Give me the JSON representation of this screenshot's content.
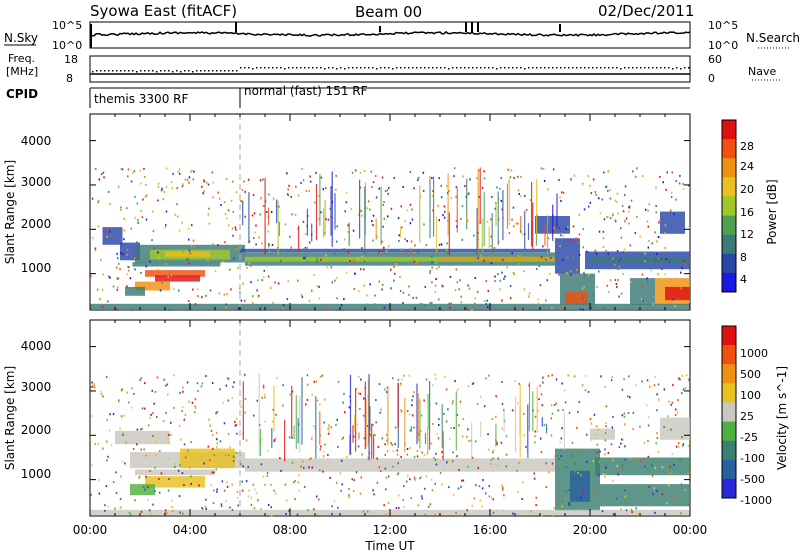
{
  "header": {
    "title": "Syowa East (fitACF)",
    "beam": "Beam 00",
    "date": "02/Dec/2011"
  },
  "top_panels": {
    "nsky_label": "N.Sky",
    "nsearch_label": "N.Search",
    "nsky_ticks": [
      "10^5",
      "10^0"
    ],
    "nsky_right_ticks": [
      "10^5",
      "10^0"
    ],
    "freq_label_1": "Freq.",
    "freq_label_2": "[MHz]",
    "freq_ticks": [
      "18",
      "8"
    ],
    "nave_label": "Nave",
    "nave_ticks": [
      "60",
      "0"
    ],
    "cpid_label": "CPID",
    "cpid_segments": [
      {
        "label": "themis 3300 RF",
        "start": 0,
        "end": 6
      },
      {
        "label": "normal (fast) 151 RF",
        "start": 6,
        "end": 24
      }
    ]
  },
  "chart_data": [
    {
      "type": "heatmap",
      "name": "power",
      "ylabel": "Slant Range [km]",
      "ylim": [
        180,
        4600
      ],
      "yticks": [
        "1000",
        "2000",
        "3000",
        "4000"
      ],
      "ytick_values": [
        1000,
        2000,
        3000,
        4000
      ],
      "xlim": [
        0,
        24
      ],
      "colorbar": {
        "label": "Power [dB]",
        "levels": [
          "4",
          "8",
          "12",
          "16",
          "20",
          "24",
          "28"
        ],
        "colors": [
          "#1818e0",
          "#2848a8",
          "#3a7a78",
          "#50a050",
          "#a0c828",
          "#e8c020",
          "#f09010",
          "#f05010",
          "#e01010"
        ]
      },
      "bands": [
        {
          "t0": 0.5,
          "t1": 1.3,
          "r0": 1650,
          "r1": 2050,
          "color": "#2848a8"
        },
        {
          "t0": 1.2,
          "t1": 2.0,
          "r0": 1300,
          "r1": 1700,
          "color": "#2848a8"
        },
        {
          "t0": 1.8,
          "t1": 6.2,
          "r0": 1250,
          "r1": 1650,
          "color": "#3a7a78"
        },
        {
          "t0": 2.4,
          "t1": 5.6,
          "r0": 1320,
          "r1": 1540,
          "color": "#a0c828"
        },
        {
          "t0": 3.0,
          "t1": 4.8,
          "r0": 1380,
          "r1": 1500,
          "color": "#e8c020"
        },
        {
          "t0": 1.7,
          "t1": 5.2,
          "r0": 1160,
          "r1": 1260,
          "color": "#3a7a78"
        },
        {
          "t0": 2.2,
          "t1": 4.6,
          "r0": 930,
          "r1": 1080,
          "color": "#f05010"
        },
        {
          "t0": 2.6,
          "t1": 4.4,
          "r0": 820,
          "r1": 960,
          "color": "#e01010"
        },
        {
          "t0": 1.8,
          "t1": 3.2,
          "r0": 620,
          "r1": 820,
          "color": "#f09010"
        },
        {
          "t0": 1.4,
          "t1": 2.2,
          "r0": 500,
          "r1": 700,
          "color": "#3a7a78"
        },
        {
          "t0": 6.2,
          "t1": 18.6,
          "r0": 1180,
          "r1": 1480,
          "color": "#3a7a78"
        },
        {
          "t0": 6.2,
          "t1": 18.6,
          "r0": 1270,
          "r1": 1380,
          "color": "#a0c828"
        },
        {
          "t0": 14.0,
          "t1": 18.6,
          "r0": 1300,
          "r1": 1380,
          "color": "#f09010"
        },
        {
          "t0": 6.0,
          "t1": 18.4,
          "r0": 1480,
          "r1": 1560,
          "color": "#2848a8"
        },
        {
          "t0": 18.6,
          "t1": 19.6,
          "r0": 1000,
          "r1": 1800,
          "color": "#2848a8"
        },
        {
          "t0": 18.8,
          "t1": 20.2,
          "r0": 300,
          "r1": 1000,
          "color": "#3a7a78"
        },
        {
          "t0": 19.0,
          "t1": 19.9,
          "r0": 300,
          "r1": 600,
          "color": "#f05010"
        },
        {
          "t0": 19.8,
          "t1": 24.0,
          "r0": 1100,
          "r1": 1500,
          "color": "#2848a8"
        },
        {
          "t0": 20.0,
          "t1": 24.0,
          "r0": 1250,
          "r1": 1380,
          "color": "#3a7a78"
        },
        {
          "t0": 22.6,
          "t1": 24.0,
          "r0": 300,
          "r1": 900,
          "color": "#f09010"
        },
        {
          "t0": 23.0,
          "t1": 24.0,
          "r0": 400,
          "r1": 700,
          "color": "#e01010"
        },
        {
          "t0": 21.6,
          "t1": 22.6,
          "r0": 300,
          "r1": 900,
          "color": "#3a7a78"
        },
        {
          "t0": 22.8,
          "t1": 23.8,
          "r0": 1900,
          "r1": 2400,
          "color": "#2848a8"
        },
        {
          "t0": 17.8,
          "t1": 19.2,
          "r0": 1900,
          "r1": 2300,
          "color": "#2848a8"
        },
        {
          "t0": 0.0,
          "t1": 24.0,
          "r0": 200,
          "r1": 320,
          "color": "#3a7a78"
        }
      ]
    },
    {
      "type": "heatmap",
      "name": "velocity",
      "ylabel": "Slant Range [km]",
      "xlabel": "Time UT",
      "ylim": [
        180,
        4600
      ],
      "yticks": [
        "1000",
        "2000",
        "3000",
        "4000"
      ],
      "ytick_values": [
        1000,
        2000,
        3000,
        4000
      ],
      "xlim": [
        0,
        24
      ],
      "xticks": [
        "00:00",
        "04:00",
        "08:00",
        "12:00",
        "16:00",
        "20:00",
        "00:00"
      ],
      "xtick_values": [
        0,
        4,
        8,
        12,
        16,
        20,
        24
      ],
      "colorbar": {
        "label": "Velocity [m s^-1]",
        "levels": [
          "1000",
          "500",
          "100",
          "25",
          "-25",
          "-100",
          "-500",
          "-1000"
        ],
        "colors": [
          "#2828d8",
          "#2860a0",
          "#3a8070",
          "#50b040",
          "#c8c8c0",
          "#e8c020",
          "#f09010",
          "#f05010",
          "#e01010"
        ]
      },
      "bands": [
        {
          "t0": 1.0,
          "t1": 3.2,
          "r0": 1800,
          "r1": 2100,
          "color": "#c8c8c0"
        },
        {
          "t0": 1.6,
          "t1": 6.2,
          "r0": 1260,
          "r1": 1620,
          "color": "#c8c8c0"
        },
        {
          "t0": 3.6,
          "t1": 5.8,
          "r0": 1260,
          "r1": 1700,
          "color": "#e8c020"
        },
        {
          "t0": 1.8,
          "t1": 5.0,
          "r0": 1100,
          "r1": 1230,
          "color": "#c8c8c0"
        },
        {
          "t0": 2.2,
          "t1": 4.6,
          "r0": 820,
          "r1": 1080,
          "color": "#e8c020"
        },
        {
          "t0": 1.6,
          "t1": 2.6,
          "r0": 650,
          "r1": 900,
          "color": "#50b040"
        },
        {
          "t0": 6.2,
          "t1": 18.6,
          "r0": 1180,
          "r1": 1480,
          "color": "#c8c8c0"
        },
        {
          "t0": 18.6,
          "t1": 20.4,
          "r0": 300,
          "r1": 1700,
          "color": "#3a8070"
        },
        {
          "t0": 19.2,
          "t1": 20.0,
          "r0": 500,
          "r1": 1200,
          "color": "#2860a0"
        },
        {
          "t0": 20.2,
          "t1": 24.0,
          "r0": 1100,
          "r1": 1500,
          "color": "#3a8070"
        },
        {
          "t0": 20.4,
          "t1": 24.0,
          "r0": 400,
          "r1": 900,
          "color": "#3a8070"
        },
        {
          "t0": 20.0,
          "t1": 21.0,
          "r0": 1900,
          "r1": 2150,
          "color": "#c8c8c0"
        },
        {
          "t0": 22.8,
          "t1": 24.0,
          "r0": 1900,
          "r1": 2400,
          "color": "#c8c8c0"
        },
        {
          "t0": 0.0,
          "t1": 24.0,
          "r0": 200,
          "r1": 320,
          "color": "#c8c8c0"
        }
      ]
    }
  ]
}
